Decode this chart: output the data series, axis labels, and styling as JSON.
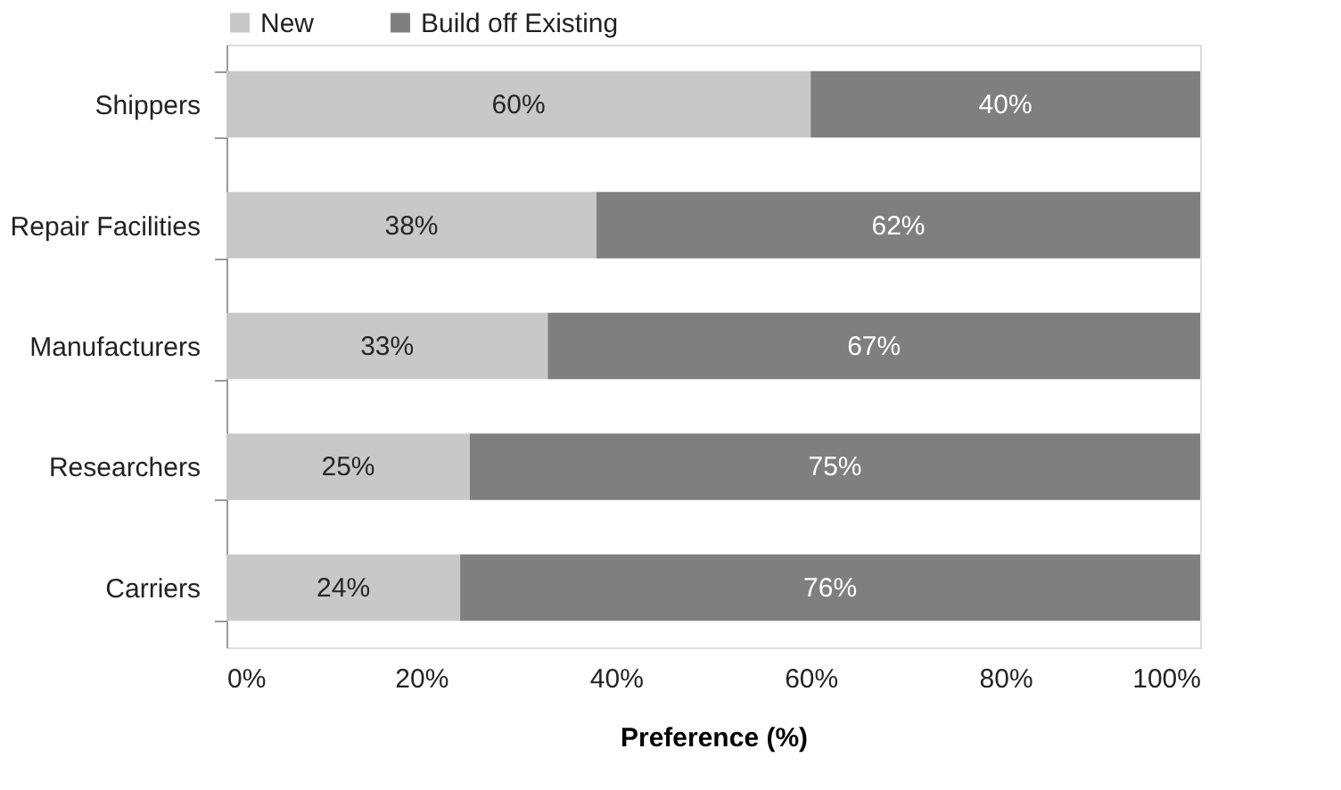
{
  "chart_data": {
    "type": "bar",
    "orientation": "horizontal",
    "stacked": true,
    "categories": [
      "Shippers",
      "Repair Facilities",
      "Manufacturers",
      "Researchers",
      "Carriers"
    ],
    "series": [
      {
        "name": "New",
        "color": "#c8c8c8",
        "values": [
          60,
          38,
          33,
          25,
          24
        ],
        "value_labels": [
          "60%",
          "38%",
          "33%",
          "25%",
          "24%"
        ]
      },
      {
        "name": "Build off Existing",
        "color": "#7f7f7f",
        "values": [
          40,
          62,
          67,
          75,
          76
        ],
        "value_labels": [
          "40%",
          "62%",
          "67%",
          "75%",
          "76%"
        ]
      }
    ],
    "xlim": [
      0,
      100
    ],
    "xticks": [
      {
        "value": 0,
        "label": "0%"
      },
      {
        "value": 20,
        "label": "20%"
      },
      {
        "value": 40,
        "label": "40%"
      },
      {
        "value": 60,
        "label": "60%"
      },
      {
        "value": 80,
        "label": "80%"
      },
      {
        "value": 100,
        "label": "100%"
      }
    ],
    "xlabel": "Preference (%)",
    "legend": "top",
    "grid": false
  }
}
